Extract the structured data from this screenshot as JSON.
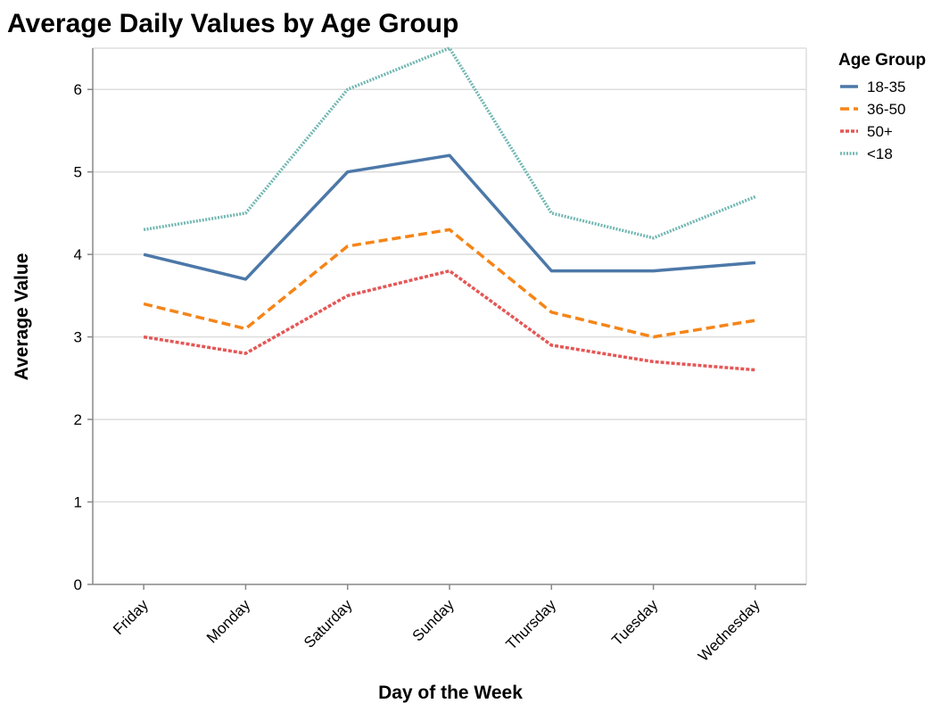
{
  "chart_data": {
    "type": "line",
    "title": "Average Daily Values by Age Group",
    "xlabel": "Day of the Week",
    "ylabel": "Average Value",
    "categories": [
      "Friday",
      "Monday",
      "Saturday",
      "Sunday",
      "Thursday",
      "Tuesday",
      "Wednesday"
    ],
    "ylim": [
      0,
      6.5
    ],
    "yticks": [
      "0",
      "1",
      "2",
      "3",
      "4",
      "5",
      "6"
    ],
    "grid": true,
    "legend": {
      "title": "Age Group",
      "position": "top-right"
    },
    "series": [
      {
        "name": "18-35",
        "color": "#4c78a8",
        "dash": "solid",
        "values": [
          4.0,
          3.7,
          5.0,
          5.2,
          3.8,
          3.8,
          3.9
        ]
      },
      {
        "name": "36-50",
        "color": "#f58518",
        "dash": "dashed",
        "values": [
          3.4,
          3.1,
          4.1,
          4.3,
          3.3,
          3.0,
          3.2
        ]
      },
      {
        "name": "50+",
        "color": "#e45756",
        "dash": "dotted",
        "values": [
          3.0,
          2.8,
          3.5,
          3.8,
          2.9,
          2.7,
          2.6
        ]
      },
      {
        "name": "<18",
        "color": "#72b7b2",
        "dash": "dotted-fine",
        "values": [
          4.3,
          4.5,
          6.0,
          6.5,
          4.5,
          4.2,
          4.7
        ]
      }
    ]
  }
}
